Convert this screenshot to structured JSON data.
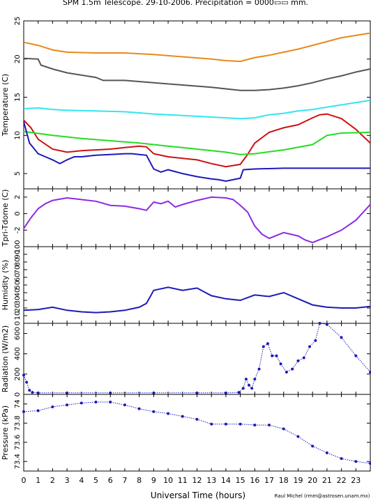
{
  "title": "SPM 1.5m Telescope. 29-10-2006. Precipitation = 0000▭▭ mm.",
  "credit": "Raul Michel (rmm@astrosen.unam.mx)",
  "xlabel": "Universal Time (hours)",
  "x_ticks": [
    "0",
    "1",
    "2",
    "3",
    "4",
    "5",
    "6",
    "7",
    "8",
    "9",
    "10",
    "11",
    "12",
    "13",
    "14",
    "15",
    "16",
    "17",
    "18",
    "19",
    "20",
    "21",
    "22",
    "23"
  ],
  "colors": {
    "orange": "#e8891a",
    "darkgray": "#555555",
    "cyan": "#33e5f0",
    "red": "#cc1111",
    "green": "#22dd22",
    "blue": "#1a1ab8",
    "purple": "#8a2be2"
  },
  "chart_data": [
    {
      "type": "line",
      "ylabel": "Temperature (C)",
      "ylim": [
        3,
        25
      ],
      "yticks": [
        5,
        10,
        15,
        20,
        25
      ],
      "series": [
        {
          "color": "orange",
          "x": [
            0,
            1,
            2,
            3,
            5,
            7,
            9,
            11,
            13,
            14,
            15,
            16,
            17,
            18,
            19,
            20,
            21,
            22,
            23,
            24
          ],
          "y": [
            22.2,
            21.8,
            21.2,
            20.9,
            20.8,
            20.8,
            20.6,
            20.3,
            20.0,
            19.8,
            19.7,
            20.2,
            20.5,
            20.9,
            21.3,
            21.8,
            22.3,
            22.8,
            23.1,
            23.4
          ]
        },
        {
          "color": "darkgray",
          "x": [
            0,
            1,
            1.2,
            2,
            3,
            5,
            5.5,
            7,
            9,
            11,
            13,
            15,
            16,
            17,
            18,
            19,
            20,
            21,
            22,
            23,
            24
          ],
          "y": [
            20.1,
            20.0,
            19.2,
            18.7,
            18.2,
            17.6,
            17.2,
            17.2,
            16.9,
            16.6,
            16.3,
            15.9,
            15.9,
            16.0,
            16.2,
            16.5,
            16.9,
            17.4,
            17.8,
            18.3,
            18.7
          ]
        },
        {
          "color": "cyan",
          "x": [
            0,
            1,
            2,
            3,
            5,
            7,
            9,
            11,
            13,
            15,
            16,
            17,
            18,
            19,
            20,
            21,
            22,
            23,
            24
          ],
          "y": [
            13.5,
            13.6,
            13.4,
            13.3,
            13.2,
            13.1,
            12.8,
            12.6,
            12.4,
            12.2,
            12.3,
            12.7,
            12.9,
            13.2,
            13.4,
            13.7,
            14.0,
            14.3,
            14.6
          ]
        },
        {
          "color": "red",
          "x": [
            0,
            0.5,
            1,
            2,
            3,
            4,
            5,
            6,
            7,
            8,
            8.5,
            9,
            10,
            11,
            12,
            13,
            14,
            15,
            15.5,
            16,
            17,
            18,
            19,
            20,
            20.5,
            21,
            22,
            23,
            24
          ],
          "y": [
            12.0,
            11.0,
            9.5,
            8.2,
            7.8,
            8.0,
            8.1,
            8.2,
            8.4,
            8.6,
            8.5,
            7.6,
            7.2,
            7.0,
            6.8,
            6.3,
            5.9,
            6.2,
            7.5,
            9.0,
            10.4,
            11.0,
            11.4,
            12.3,
            12.7,
            12.8,
            12.2,
            10.8,
            9.0
          ]
        },
        {
          "color": "green",
          "x": [
            0,
            2,
            4,
            6,
            8,
            10,
            12,
            14,
            15,
            16,
            18,
            20,
            21,
            22,
            24
          ],
          "y": [
            10.5,
            10.0,
            9.6,
            9.3,
            9.0,
            8.6,
            8.2,
            7.8,
            7.5,
            7.6,
            8.1,
            8.8,
            10.0,
            10.3,
            10.4
          ]
        },
        {
          "color": "blue",
          "x": [
            0,
            0.4,
            1,
            1.5,
            2,
            2.5,
            3,
            3.5,
            4,
            5,
            6,
            7,
            7.5,
            8,
            8.5,
            9,
            9.5,
            10,
            11,
            12,
            13,
            13.5,
            14,
            15,
            15.2,
            16,
            18,
            20,
            22,
            24
          ],
          "y": [
            11.8,
            9.0,
            7.6,
            7.2,
            6.8,
            6.3,
            6.8,
            7.2,
            7.2,
            7.4,
            7.5,
            7.6,
            7.6,
            7.5,
            7.4,
            5.6,
            5.2,
            5.5,
            5.0,
            4.6,
            4.3,
            4.2,
            4.0,
            4.4,
            5.5,
            5.6,
            5.7,
            5.7,
            5.7,
            5.7
          ]
        }
      ]
    },
    {
      "type": "line",
      "ylabel": "Tpri-Tdome (C)",
      "ylim": [
        -4,
        3
      ],
      "yticks": [
        -2,
        0,
        2
      ],
      "series": [
        {
          "color": "purple",
          "x": [
            0,
            0.5,
            1,
            1.5,
            2,
            3,
            4,
            5,
            6,
            7,
            8,
            8.5,
            9,
            9.5,
            10,
            10.5,
            11,
            12,
            13,
            14,
            14.5,
            15,
            15.5,
            16,
            16.5,
            17,
            18,
            19,
            19.5,
            20,
            21,
            22,
            23,
            24
          ],
          "y": [
            -1.8,
            -0.5,
            0.6,
            1.2,
            1.6,
            1.9,
            1.7,
            1.5,
            1.0,
            0.9,
            0.6,
            0.4,
            1.4,
            1.2,
            1.5,
            0.8,
            1.1,
            1.6,
            2.0,
            1.9,
            1.7,
            1.0,
            0.2,
            -1.5,
            -2.5,
            -3.0,
            -2.3,
            -2.7,
            -3.2,
            -3.5,
            -2.8,
            -2.0,
            -0.8,
            1.1
          ]
        }
      ]
    },
    {
      "type": "line",
      "ylabel": "Humidity (%)",
      "ylim": [
        0,
        100
      ],
      "yticks": [
        0,
        10,
        20,
        30,
        40,
        50,
        60,
        70,
        80,
        90,
        100
      ],
      "series": [
        {
          "color": "blue",
          "x": [
            0,
            1,
            2,
            3,
            4,
            5,
            6,
            7,
            8,
            8.5,
            9,
            10,
            11,
            12,
            13,
            14,
            15,
            16,
            17,
            18,
            19,
            20,
            21,
            22,
            23,
            24
          ],
          "y": [
            17,
            18,
            21,
            17,
            15,
            14,
            15,
            17,
            21,
            26,
            43,
            47,
            43,
            46,
            36,
            32,
            30,
            37,
            35,
            40,
            32,
            24,
            21,
            20,
            20,
            22
          ]
        }
      ]
    },
    {
      "type": "scatter",
      "ylabel": "Radiation (W/m2)",
      "ylim": [
        0,
        700
      ],
      "yticks": [
        0,
        200,
        400,
        600
      ],
      "series": [
        {
          "color": "blue",
          "x": [
            0,
            0.2,
            0.4,
            0.6,
            1,
            3,
            6,
            9,
            12,
            14,
            14.9,
            15.2,
            15.4,
            15.6,
            15.8,
            16.0,
            16.3,
            16.6,
            16.9,
            17.2,
            17.5,
            17.8,
            18.2,
            18.6,
            19.0,
            19.4,
            19.8,
            20.2,
            20.5,
            21,
            22,
            23,
            24
          ],
          "y": [
            190,
            120,
            40,
            20,
            15,
            15,
            15,
            15,
            15,
            15,
            20,
            60,
            150,
            90,
            60,
            150,
            250,
            470,
            500,
            380,
            380,
            300,
            220,
            250,
            330,
            360,
            470,
            530,
            700,
            690,
            560,
            380,
            220
          ]
        }
      ]
    },
    {
      "type": "scatter",
      "ylabel": "Pressure (kPa)",
      "ylim": [
        73.3,
        74.1
      ],
      "yticks": [
        73.4,
        73.6,
        73.8,
        74.0
      ],
      "ytick_labels": [
        "73.4",
        "73.6",
        "73.8",
        "74"
      ],
      "series": [
        {
          "color": "blue",
          "x": [
            0,
            1,
            2,
            3,
            4,
            5,
            6,
            7,
            8,
            9,
            10,
            11,
            12,
            13,
            14,
            15,
            16,
            17,
            18,
            19,
            20,
            21,
            22,
            23,
            24
          ],
          "y": [
            73.92,
            73.93,
            73.97,
            73.99,
            74.01,
            74.02,
            74.02,
            73.99,
            73.95,
            73.92,
            73.9,
            73.87,
            73.84,
            73.79,
            73.79,
            73.79,
            73.78,
            73.78,
            73.74,
            73.66,
            73.56,
            73.49,
            73.43,
            73.4,
            73.38
          ]
        }
      ]
    }
  ]
}
